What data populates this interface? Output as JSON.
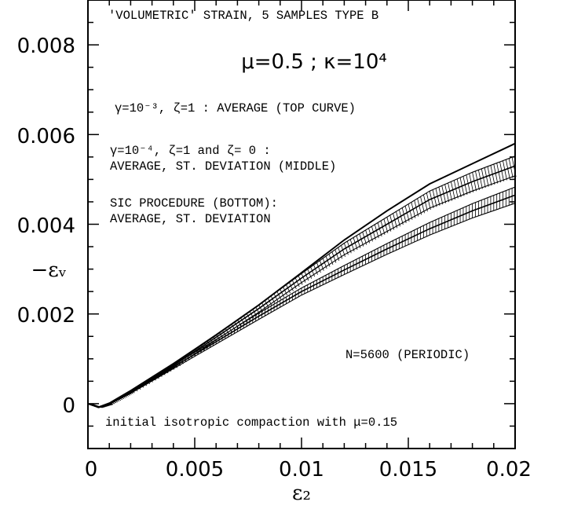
{
  "chart_data": {
    "type": "line",
    "title": "",
    "xlabel": "ε₂",
    "ylabel": "−εᵥ",
    "xlim": [
      0,
      0.02
    ],
    "ylim": [
      -0.001,
      0.009
    ],
    "x_ticks": [
      0,
      0.005,
      0.01,
      0.015,
      0.02
    ],
    "x_tick_labels": [
      "0",
      "0.005",
      "0.01",
      "0.015",
      "0.02"
    ],
    "y_ticks": [
      0,
      0.002,
      0.004,
      0.006,
      0.008
    ],
    "y_tick_labels": [
      "0",
      "0.002",
      "0.004",
      "0.006",
      "0.008"
    ],
    "grid": false,
    "annotations": {
      "line1": "'VOLUMETRIC' STRAIN,  5 SAMPLES TYPE B",
      "params": "μ=0.5  ;  κ=10⁴",
      "gamma3": "γ=10⁻³, ζ=1 : AVERAGE (TOP CURVE)",
      "gamma4_a": "γ=10⁻⁴, ζ=1 and ζ= 0 :",
      "gamma4_b": "AVERAGE, ST. DEVIATION (MIDDLE)",
      "sic_a": "SIC PROCEDURE (BOTTOM):",
      "sic_b": "AVERAGE, ST. DEVIATION",
      "n_label": "N=5600 (PERIODIC)",
      "compaction": "initial isotropic compaction with μ=0.15"
    },
    "series": [
      {
        "x": [
          0,
          0.0005,
          0.001,
          0.002,
          0.004,
          0.006,
          0.008,
          0.01,
          0.012,
          0.014,
          0.016,
          0.018,
          0.02
        ],
        "values": [
          0,
          -8e-05,
          0.0,
          0.00028,
          0.00088,
          0.00153,
          0.0022,
          0.00292,
          0.00365,
          0.0043,
          0.0049,
          0.00535,
          0.0058
        ]
      },
      {
        "x": [
          0,
          0.0005,
          0.001,
          0.002,
          0.004,
          0.006,
          0.008,
          0.01,
          0.012,
          0.014,
          0.016,
          0.018,
          0.02
        ],
        "values": [
          0,
          -8e-05,
          0.0,
          0.00027,
          0.00085,
          0.00148,
          0.00212,
          0.0028,
          0.00345,
          0.004,
          0.00455,
          0.00495,
          0.0053
        ],
        "std": [
          0,
          1e-05,
          2e-05,
          3e-05,
          5e-05,
          6e-05,
          8e-05,
          0.0001,
          0.00013,
          0.00016,
          0.00019,
          0.00021,
          0.00022
        ]
      },
      {
        "x": [
          0,
          0.0005,
          0.001,
          0.002,
          0.004,
          0.006,
          0.008,
          0.01,
          0.012,
          0.014,
          0.016,
          0.018,
          0.02
        ],
        "values": [
          0,
          -8e-05,
          0.0,
          0.00025,
          0.00082,
          0.00138,
          0.00195,
          0.0025,
          0.00298,
          0.00345,
          0.0039,
          0.0043,
          0.00465
        ],
        "std": [
          0,
          1e-05,
          1e-05,
          2e-05,
          4e-05,
          5e-05,
          7e-05,
          8e-05,
          0.0001,
          0.00012,
          0.00014,
          0.00016,
          0.00018
        ]
      }
    ]
  }
}
